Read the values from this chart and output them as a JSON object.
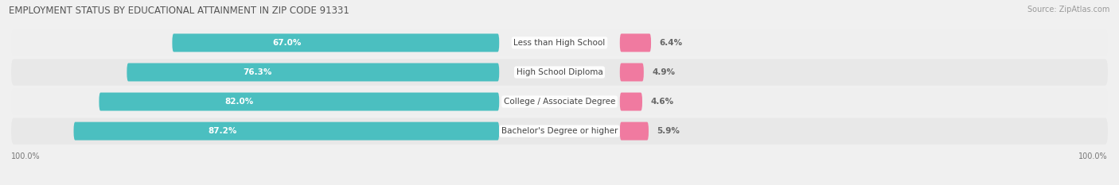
{
  "title": "EMPLOYMENT STATUS BY EDUCATIONAL ATTAINMENT IN ZIP CODE 91331",
  "source": "Source: ZipAtlas.com",
  "categories": [
    "Less than High School",
    "High School Diploma",
    "College / Associate Degree",
    "Bachelor's Degree or higher"
  ],
  "in_labor_force": [
    67.0,
    76.3,
    82.0,
    87.2
  ],
  "unemployed": [
    6.4,
    4.9,
    4.6,
    5.9
  ],
  "labor_force_color": "#4bbfc0",
  "unemployed_color": "#f07aa0",
  "row_bg_colors": [
    "#efefef",
    "#e8e8e8",
    "#efefef",
    "#e8e8e8"
  ],
  "fig_bg_color": "#f0f0f0",
  "label_white": "#ffffff",
  "label_dark": "#666666",
  "title_color": "#555555",
  "source_color": "#999999",
  "axis_label_left": "100.0%",
  "axis_label_right": "100.0%",
  "fig_width": 14.06,
  "fig_height": 2.33,
  "title_fontsize": 8.5,
  "bar_label_fontsize": 7.5,
  "category_fontsize": 7.5,
  "legend_fontsize": 7.5,
  "axis_fontsize": 7,
  "source_fontsize": 7
}
